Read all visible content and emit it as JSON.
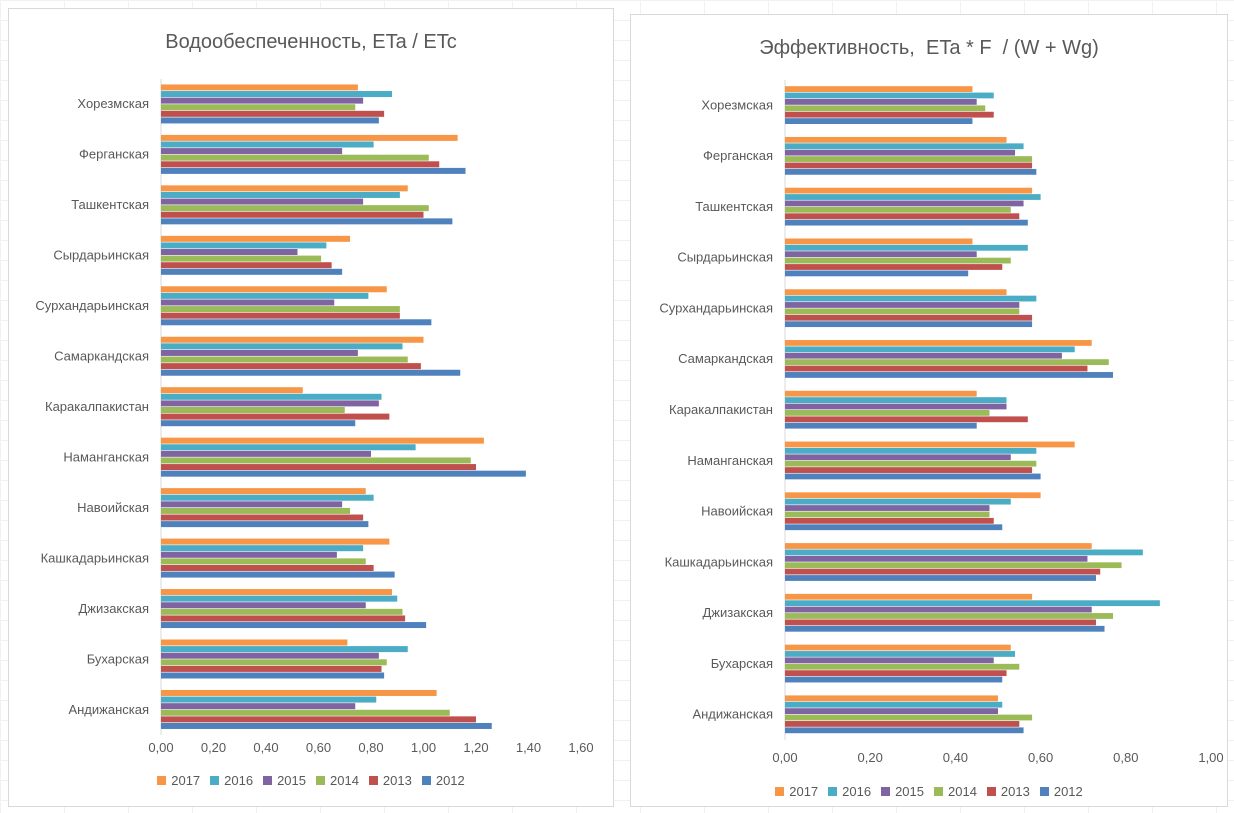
{
  "series_order": [
    "2017",
    "2016",
    "2015",
    "2014",
    "2013",
    "2012"
  ],
  "colors": {
    "2017": "#f79646",
    "2016": "#4bacc6",
    "2015": "#8064a2",
    "2014": "#9bbb59",
    "2013": "#c0504d",
    "2012": "#4f81bd"
  },
  "chart_data": [
    {
      "type": "bar",
      "orientation": "horizontal",
      "title": "Водообеспеченность, ETa / ETc",
      "categories": [
        "Хорезмская",
        "Ферганская",
        "Ташкентская",
        "Сырдарьинская",
        "Сурхандарьинская",
        "Самаркандская",
        "Каракалпакистан",
        "Наманганская",
        "Навоийская",
        "Кашкадарьинская",
        "Джизакская",
        "Бухарская",
        "Андижанская"
      ],
      "series": [
        {
          "name": "2017",
          "values": [
            0.75,
            1.13,
            0.94,
            0.72,
            0.86,
            1.0,
            0.54,
            1.23,
            0.78,
            0.87,
            0.88,
            0.71,
            1.05
          ]
        },
        {
          "name": "2016",
          "values": [
            0.88,
            0.81,
            0.91,
            0.63,
            0.79,
            0.92,
            0.84,
            0.97,
            0.81,
            0.77,
            0.9,
            0.94,
            0.82
          ]
        },
        {
          "name": "2015",
          "values": [
            0.77,
            0.69,
            0.77,
            0.52,
            0.66,
            0.75,
            0.83,
            0.8,
            0.69,
            0.67,
            0.78,
            0.83,
            0.74
          ]
        },
        {
          "name": "2014",
          "values": [
            0.74,
            1.02,
            1.02,
            0.61,
            0.91,
            0.94,
            0.7,
            1.18,
            0.72,
            0.78,
            0.92,
            0.86,
            1.1
          ]
        },
        {
          "name": "2013",
          "values": [
            0.85,
            1.06,
            1.0,
            0.65,
            0.91,
            0.99,
            0.87,
            1.2,
            0.77,
            0.81,
            0.93,
            0.84,
            1.2
          ]
        },
        {
          "name": "2012",
          "values": [
            0.83,
            1.16,
            1.11,
            0.69,
            1.03,
            1.14,
            0.74,
            1.39,
            0.79,
            0.89,
            1.01,
            0.85,
            1.26
          ]
        }
      ],
      "xlim": [
        0,
        1.6
      ],
      "xticks": [
        "0,00",
        "0,20",
        "0,40",
        "0,60",
        "0,80",
        "1,00",
        "1,20",
        "1,40",
        "1,60"
      ],
      "legend_position": "bottom",
      "grid": false
    },
    {
      "type": "bar",
      "orientation": "horizontal",
      "title": "Эффективность,  ETa * F  / (W + Wg)",
      "categories": [
        "Хорезмская",
        "Ферганская",
        "Ташкентская",
        "Сырдарьинская",
        "Сурхандарьинская",
        "Самаркандская",
        "Каракалпакистан",
        "Наманганская",
        "Навоийская",
        "Кашкадарьинская",
        "Джизакская",
        "Бухарская",
        "Андижанская"
      ],
      "series": [
        {
          "name": "2017",
          "values": [
            0.44,
            0.52,
            0.58,
            0.44,
            0.52,
            0.72,
            0.45,
            0.68,
            0.6,
            0.72,
            0.58,
            0.53,
            0.5
          ]
        },
        {
          "name": "2016",
          "values": [
            0.49,
            0.56,
            0.6,
            0.57,
            0.59,
            0.68,
            0.52,
            0.59,
            0.53,
            0.84,
            0.88,
            0.54,
            0.51
          ]
        },
        {
          "name": "2015",
          "values": [
            0.45,
            0.54,
            0.56,
            0.45,
            0.55,
            0.65,
            0.52,
            0.53,
            0.48,
            0.71,
            0.72,
            0.49,
            0.5
          ]
        },
        {
          "name": "2014",
          "values": [
            0.47,
            0.58,
            0.53,
            0.53,
            0.55,
            0.76,
            0.48,
            0.59,
            0.48,
            0.79,
            0.77,
            0.55,
            0.58
          ]
        },
        {
          "name": "2013",
          "values": [
            0.49,
            0.58,
            0.55,
            0.51,
            0.58,
            0.71,
            0.57,
            0.58,
            0.49,
            0.74,
            0.73,
            0.52,
            0.55
          ]
        },
        {
          "name": "2012",
          "values": [
            0.44,
            0.59,
            0.57,
            0.43,
            0.58,
            0.77,
            0.45,
            0.6,
            0.51,
            0.73,
            0.75,
            0.51,
            0.56
          ]
        }
      ],
      "xlim": [
        0,
        1.0
      ],
      "xticks": [
        "0,00",
        "0,20",
        "0,40",
        "0,60",
        "0,80",
        "1,00"
      ],
      "legend_position": "bottom",
      "grid": false
    }
  ]
}
